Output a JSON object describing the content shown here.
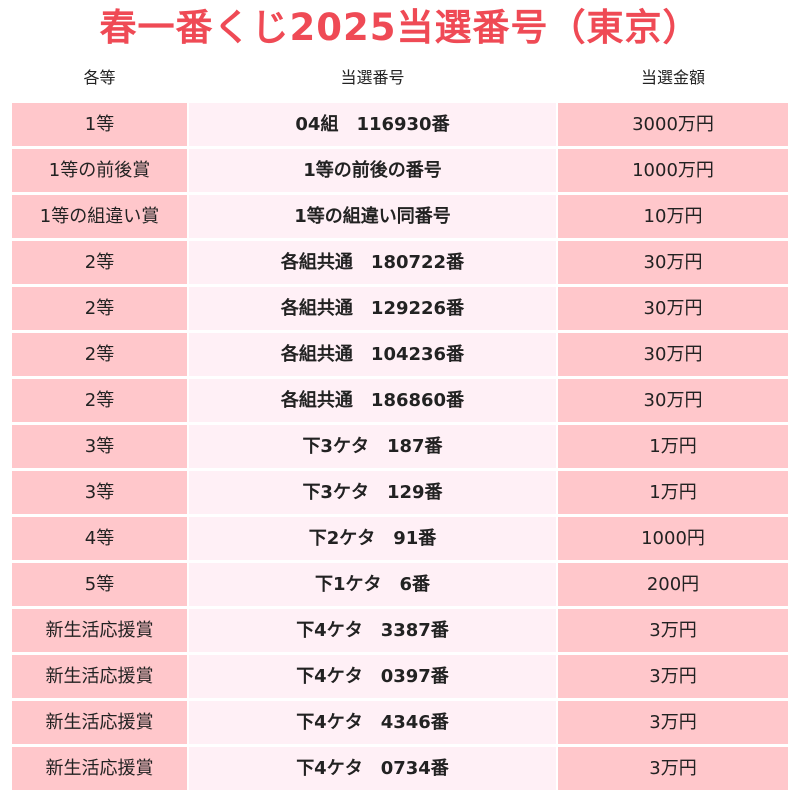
{
  "title": "春一番くじ2025当選番号（東京）",
  "headers": {
    "grade": "各等",
    "number": "当選番号",
    "amount": "当選金額"
  },
  "rows": [
    {
      "grade": "1等",
      "number": "04組　116930番",
      "amount": "3000万円"
    },
    {
      "grade": "1等の前後賞",
      "number": "1等の前後の番号",
      "amount": "1000万円"
    },
    {
      "grade": "1等の組違い賞",
      "number": "1等の組違い同番号",
      "amount": "10万円"
    },
    {
      "grade": "2等",
      "number": "各組共通　180722番",
      "amount": "30万円"
    },
    {
      "grade": "2等",
      "number": "各組共通　129226番",
      "amount": "30万円"
    },
    {
      "grade": "2等",
      "number": "各組共通　104236番",
      "amount": "30万円"
    },
    {
      "grade": "2等",
      "number": "各組共通　186860番",
      "amount": "30万円"
    },
    {
      "grade": "3等",
      "number": "下3ケタ　187番",
      "amount": "1万円"
    },
    {
      "grade": "3等",
      "number": "下3ケタ　129番",
      "amount": "1万円"
    },
    {
      "grade": "4等",
      "number": "下2ケタ　91番",
      "amount": "1000円"
    },
    {
      "grade": "5等",
      "number": "下1ケタ　6番",
      "amount": "200円"
    },
    {
      "grade": "新生活応援賞",
      "number": "下4ケタ　3387番",
      "amount": "3万円"
    },
    {
      "grade": "新生活応援賞",
      "number": "下4ケタ　0397番",
      "amount": "3万円"
    },
    {
      "grade": "新生活応援賞",
      "number": "下4ケタ　4346番",
      "amount": "3万円"
    },
    {
      "grade": "新生活応援賞",
      "number": "下4ケタ　0734番",
      "amount": "3万円"
    }
  ]
}
